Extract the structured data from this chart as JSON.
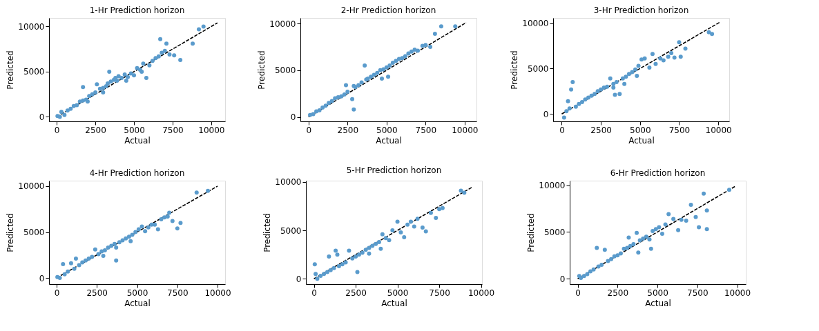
{
  "chart_data": [
    {
      "type": "scatter",
      "title": "1-Hr Prediction horizon",
      "xlabel": "Actual",
      "ylabel": "Predicted",
      "xlim": [
        -500,
        10900
      ],
      "ylim": [
        -500,
        10950
      ],
      "xticks": [
        0,
        2500,
        5000,
        7500,
        10000
      ],
      "yticks": [
        0,
        5000,
        10000
      ],
      "series": [
        {
          "type": "line",
          "color": "#000000",
          "line_style": "dashed",
          "x": [
            0,
            10400
          ],
          "values": [
            0,
            10400
          ]
        },
        {
          "type": "scatter",
          "marker": "circle",
          "color": "#5a9bcc",
          "x": [
            50,
            200,
            300,
            500,
            700,
            900,
            1100,
            1300,
            1500,
            1700,
            1700,
            1900,
            2100,
            2300,
            2500,
            2600,
            2800,
            3000,
            3200,
            3300,
            3400,
            3500,
            3700,
            3800,
            3900,
            4000,
            4200,
            4400,
            4600,
            4800,
            5000,
            5200,
            5400,
            5600,
            5800,
            6000,
            6200,
            6400,
            6600,
            6700,
            6800,
            7000,
            7100,
            7300,
            7600,
            8000,
            8800,
            9200,
            9500,
            3000,
            2000,
            4500,
            5500
          ],
          "values": [
            100,
            0,
            550,
            200,
            700,
            900,
            1200,
            1300,
            1700,
            3300,
            1800,
            1900,
            2300,
            2500,
            2700,
            3600,
            3100,
            3200,
            3400,
            3700,
            5000,
            3900,
            4100,
            4300,
            4000,
            4500,
            4300,
            4700,
            4400,
            4800,
            4600,
            5400,
            5200,
            5900,
            4300,
            5700,
            6200,
            6500,
            6700,
            8600,
            7100,
            7300,
            8100,
            6900,
            6800,
            6300,
            8100,
            9700,
            10000,
            2700,
            1700,
            4000,
            5000
          ]
        }
      ]
    },
    {
      "type": "scatter",
      "title": "2-Hr Prediction horizon",
      "xlabel": "Actual",
      "ylabel": "Predicted",
      "xlim": [
        -520,
        10760
      ],
      "ylim": [
        -480,
        10600
      ],
      "xticks": [
        0,
        2500,
        5000,
        7500,
        10000
      ],
      "yticks": [
        0,
        5000,
        10000
      ],
      "series": [
        {
          "type": "line",
          "color": "#000000",
          "line_style": "dashed",
          "x": [
            0,
            10100
          ],
          "values": [
            0,
            10100
          ]
        },
        {
          "type": "scatter",
          "marker": "circle",
          "color": "#5a9bcc",
          "x": [
            100,
            300,
            500,
            700,
            900,
            1100,
            1300,
            1500,
            1700,
            1900,
            2100,
            2300,
            2400,
            2500,
            2800,
            2900,
            3000,
            3200,
            3400,
            3600,
            3700,
            3800,
            4000,
            4200,
            4400,
            4600,
            4800,
            5000,
            5200,
            5400,
            5600,
            5800,
            6000,
            6200,
            6400,
            6600,
            6800,
            7000,
            7300,
            7500,
            7800,
            8100,
            8500,
            9400,
            2900,
            5100,
            4700
          ],
          "values": [
            200,
            300,
            600,
            700,
            1000,
            1200,
            1500,
            1700,
            2000,
            2100,
            2200,
            2400,
            3400,
            2700,
            1900,
            800,
            3200,
            3400,
            3700,
            5500,
            4000,
            4100,
            4300,
            4500,
            4700,
            5000,
            5100,
            5300,
            5500,
            5800,
            6000,
            6200,
            6300,
            6500,
            6800,
            7000,
            7200,
            7100,
            7600,
            7700,
            7500,
            8900,
            9700,
            9700,
            3300,
            4300,
            4100
          ]
        }
      ]
    },
    {
      "type": "scatter",
      "title": "3-Hr Prediction horizon",
      "xlabel": "Actual",
      "ylabel": "Predicted",
      "xlim": [
        -550,
        10700
      ],
      "ylim": [
        -820,
        10570
      ],
      "xticks": [
        0,
        2500,
        5000,
        7500,
        10000
      ],
      "yticks": [
        0,
        5000,
        10000
      ],
      "series": [
        {
          "type": "line",
          "color": "#000000",
          "line_style": "dashed",
          "x": [
            0,
            10100
          ],
          "values": [
            0,
            10100
          ]
        },
        {
          "type": "scatter",
          "marker": "circle",
          "color": "#5a9bcc",
          "x": [
            150,
            300,
            400,
            500,
            600,
            700,
            900,
            1100,
            1300,
            1500,
            1700,
            1900,
            2100,
            2300,
            2500,
            2700,
            2900,
            3100,
            3300,
            3400,
            3500,
            3700,
            3900,
            4100,
            4300,
            4500,
            4700,
            4900,
            5100,
            5300,
            5600,
            5800,
            6000,
            6300,
            6500,
            6800,
            7000,
            7200,
            7500,
            7600,
            7900,
            9400,
            9600,
            4000,
            3300,
            4800
          ],
          "values": [
            -400,
            300,
            1400,
            600,
            2700,
            3500,
            800,
            1100,
            1300,
            1600,
            1800,
            2000,
            2200,
            2500,
            2700,
            2900,
            3000,
            3900,
            3300,
            2100,
            3500,
            2200,
            3900,
            4100,
            4400,
            4600,
            4900,
            5300,
            6000,
            6100,
            5100,
            6600,
            5500,
            6100,
            5900,
            6300,
            6700,
            6200,
            7900,
            6300,
            7200,
            9000,
            8800,
            3300,
            2900,
            4200
          ]
        }
      ]
    },
    {
      "type": "scatter",
      "title": "4-Hr Prediction horizon",
      "xlabel": "Actual",
      "ylabel": "Predicted",
      "xlim": [
        -470,
        10470
      ],
      "ylim": [
        -675,
        10600
      ],
      "xticks": [
        0,
        2500,
        5000,
        7500,
        10000
      ],
      "yticks": [
        0,
        5000,
        10000
      ],
      "series": [
        {
          "type": "line",
          "color": "#000000",
          "line_style": "dashed",
          "x": [
            0,
            10000
          ],
          "values": [
            0,
            10000
          ]
        },
        {
          "type": "scatter",
          "marker": "circle",
          "color": "#5a9bcc",
          "x": [
            50,
            200,
            400,
            500,
            700,
            900,
            1100,
            1200,
            1400,
            1600,
            1800,
            2000,
            2200,
            2400,
            2600,
            2800,
            3000,
            3200,
            3400,
            3600,
            3700,
            3900,
            4100,
            4300,
            4500,
            4700,
            4900,
            5100,
            5300,
            5500,
            5700,
            5900,
            6100,
            6300,
            6500,
            6700,
            6900,
            7000,
            7200,
            7500,
            7700,
            8700,
            9400,
            3700,
            2900,
            4600
          ],
          "values": [
            100,
            0,
            1500,
            400,
            700,
            1600,
            1000,
            2100,
            1400,
            1700,
            1900,
            2100,
            2300,
            3100,
            2600,
            2900,
            3000,
            3300,
            3500,
            3700,
            1900,
            3900,
            4100,
            4300,
            4500,
            4700,
            5000,
            5300,
            5600,
            5100,
            5500,
            5800,
            5800,
            5300,
            6400,
            6600,
            6700,
            7100,
            6200,
            5400,
            6000,
            9300,
            9500,
            3300,
            2400,
            4000
          ]
        }
      ]
    },
    {
      "type": "scatter",
      "title": "5-Hr Prediction horizon",
      "xlabel": "Actual",
      "ylabel": "Predicted",
      "xlim": [
        -480,
        10060
      ],
      "ylim": [
        -550,
        10140
      ],
      "xticks": [
        0,
        2500,
        5000,
        7500,
        10000
      ],
      "yticks": [
        0,
        5000,
        10000
      ],
      "series": [
        {
          "type": "line",
          "color": "#000000",
          "line_style": "dashed",
          "x": [
            0,
            9500
          ],
          "values": [
            0,
            9500
          ]
        },
        {
          "type": "scatter",
          "marker": "circle",
          "color": "#5a9bcc",
          "x": [
            50,
            100,
            200,
            400,
            600,
            800,
            900,
            1000,
            1200,
            1300,
            1500,
            1700,
            1900,
            2100,
            2300,
            2500,
            2600,
            2700,
            2900,
            3100,
            3300,
            3500,
            3700,
            3900,
            4100,
            4300,
            4500,
            4700,
            5000,
            5200,
            5400,
            5600,
            5800,
            6000,
            6200,
            6500,
            6700,
            7000,
            7300,
            7500,
            7700,
            8800,
            9000,
            3300,
            4000,
            1400
          ],
          "values": [
            1500,
            500,
            0,
            300,
            500,
            700,
            2300,
            900,
            1100,
            2900,
            1300,
            1500,
            1700,
            2900,
            2100,
            2300,
            700,
            2500,
            2700,
            3000,
            3200,
            3400,
            3600,
            3800,
            4600,
            4200,
            4000,
            5000,
            5900,
            4800,
            4300,
            5600,
            5900,
            5400,
            6200,
            5300,
            4900,
            6800,
            6300,
            7200,
            7300,
            9100,
            8900,
            2600,
            3100,
            2500
          ]
        }
      ]
    },
    {
      "type": "scatter",
      "title": "6-Hr Prediction horizon",
      "xlabel": "Actual",
      "ylabel": "Predicted",
      "xlim": [
        -500,
        10540
      ],
      "ylim": [
        -570,
        10480
      ],
      "xticks": [
        0,
        2500,
        5000,
        7500,
        10000
      ],
      "yticks": [
        0,
        5000,
        10000
      ],
      "series": [
        {
          "type": "line",
          "color": "#000000",
          "line_style": "dashed",
          "x": [
            0,
            9900
          ],
          "values": [
            0,
            9900
          ]
        },
        {
          "type": "scatter",
          "marker": "circle",
          "color": "#5a9bcc",
          "x": [
            100,
            200,
            400,
            600,
            800,
            1000,
            1200,
            1300,
            1500,
            1700,
            1900,
            2100,
            2300,
            2500,
            2700,
            2900,
            3100,
            3300,
            3500,
            3700,
            3900,
            4100,
            4300,
            4500,
            4700,
            4900,
            5100,
            5300,
            5500,
            5700,
            6000,
            6300,
            6500,
            6800,
            7100,
            7400,
            7600,
            7900,
            8100,
            8100,
            9500,
            4600,
            3800,
            3200
          ],
          "values": [
            300,
            100,
            300,
            500,
            800,
            1000,
            3300,
            1300,
            1500,
            3100,
            1900,
            2100,
            2400,
            2500,
            2700,
            3200,
            3300,
            3500,
            3700,
            4900,
            4100,
            4300,
            4500,
            4200,
            5100,
            5300,
            5500,
            4800,
            5800,
            6900,
            6400,
            5200,
            6300,
            6200,
            7900,
            6600,
            5500,
            9100,
            7300,
            5300,
            9500,
            3200,
            2800,
            4400
          ]
        }
      ]
    }
  ]
}
